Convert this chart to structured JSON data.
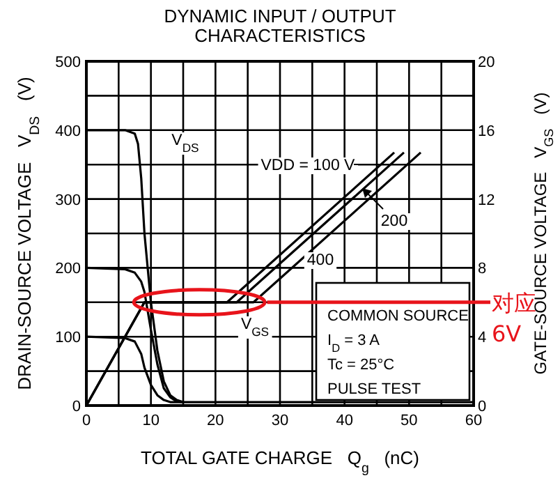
{
  "chart_data": {
    "type": "line",
    "title": "DYNAMIC INPUT / OUTPUT CHARACTERISTICS",
    "xlabel": "TOTAL GATE CHARGE   Q$_{g}$   (nC)",
    "ylabel": "DRAIN-SOURCE VOLTAGE   V$_{DS}$   (V)",
    "y2label": "GATE-SOURCE VOLTAGE   V$_{GS}$   (V)",
    "xlim": [
      0,
      60
    ],
    "xticks": [
      0,
      {
        "value": 5,
        "label": null
      },
      10,
      {
        "value": 15,
        "label": null
      },
      20,
      {
        "value": 25,
        "label": null
      },
      30,
      {
        "value": 35,
        "label": null
      },
      40,
      {
        "value": 45,
        "label": null
      },
      50,
      {
        "value": 55,
        "label": null
      },
      60
    ],
    "ylim": [
      0,
      500
    ],
    "yticks": [
      0,
      {
        "value": 50,
        "label": null
      },
      100,
      {
        "value": 150,
        "label": null
      },
      200,
      {
        "value": 250,
        "label": null
      },
      300,
      {
        "value": 350,
        "label": null
      },
      400,
      {
        "value": 450,
        "label": null
      },
      500
    ],
    "y2lim": [
      0,
      20
    ],
    "y2ticks": [
      0,
      4,
      8,
      12,
      16,
      20
    ],
    "grid": true,
    "series": [
      {
        "color": "#000000",
        "x": [
          0,
          6,
          7.5,
          8,
          8.5,
          9,
          10,
          11,
          12,
          13,
          14,
          15,
          60
        ],
        "values": [
          400,
          400,
          395,
          380,
          330,
          250,
          150,
          80,
          35,
          15,
          8,
          5,
          5
        ]
      },
      {
        "color": "#000000",
        "x": [
          0,
          6,
          7.5,
          8.5,
          9,
          10,
          11,
          12,
          13,
          14,
          15
        ],
        "values": [
          200,
          198,
          193,
          180,
          165,
          110,
          60,
          25,
          12,
          6,
          5
        ]
      },
      {
        "color": "#000000",
        "x": [
          0,
          6,
          7.5,
          8.5,
          9,
          10,
          11,
          12,
          13,
          15
        ],
        "values": [
          100,
          98,
          93,
          75,
          55,
          30,
          15,
          8,
          5,
          5
        ]
      },
      {
        "color": "#000000",
        "axis": "y2",
        "x": [
          0,
          9,
          21.8,
          47.7
        ],
        "values": [
          0,
          6,
          6,
          14.7
        ]
      },
      {
        "color": "#000000",
        "axis": "y2",
        "x": [
          0,
          9,
          23.3,
          49.2
        ],
        "values": [
          0,
          6,
          6,
          14.7
        ]
      },
      {
        "color": "#000000",
        "axis": "y2",
        "x": [
          0,
          9,
          25.9,
          51.8
        ],
        "values": [
          0,
          6,
          6,
          14.7
        ]
      }
    ],
    "annotations": [
      "V$_{DS}$",
      "V$_{GS}$",
      "VDD = 100 V",
      "200",
      "400",
      "COMMON SOURCE",
      "I$_{D}$ = 3 A",
      "Tc = 25°C",
      "PULSE TEST",
      "对应 6V"
    ]
  }
}
